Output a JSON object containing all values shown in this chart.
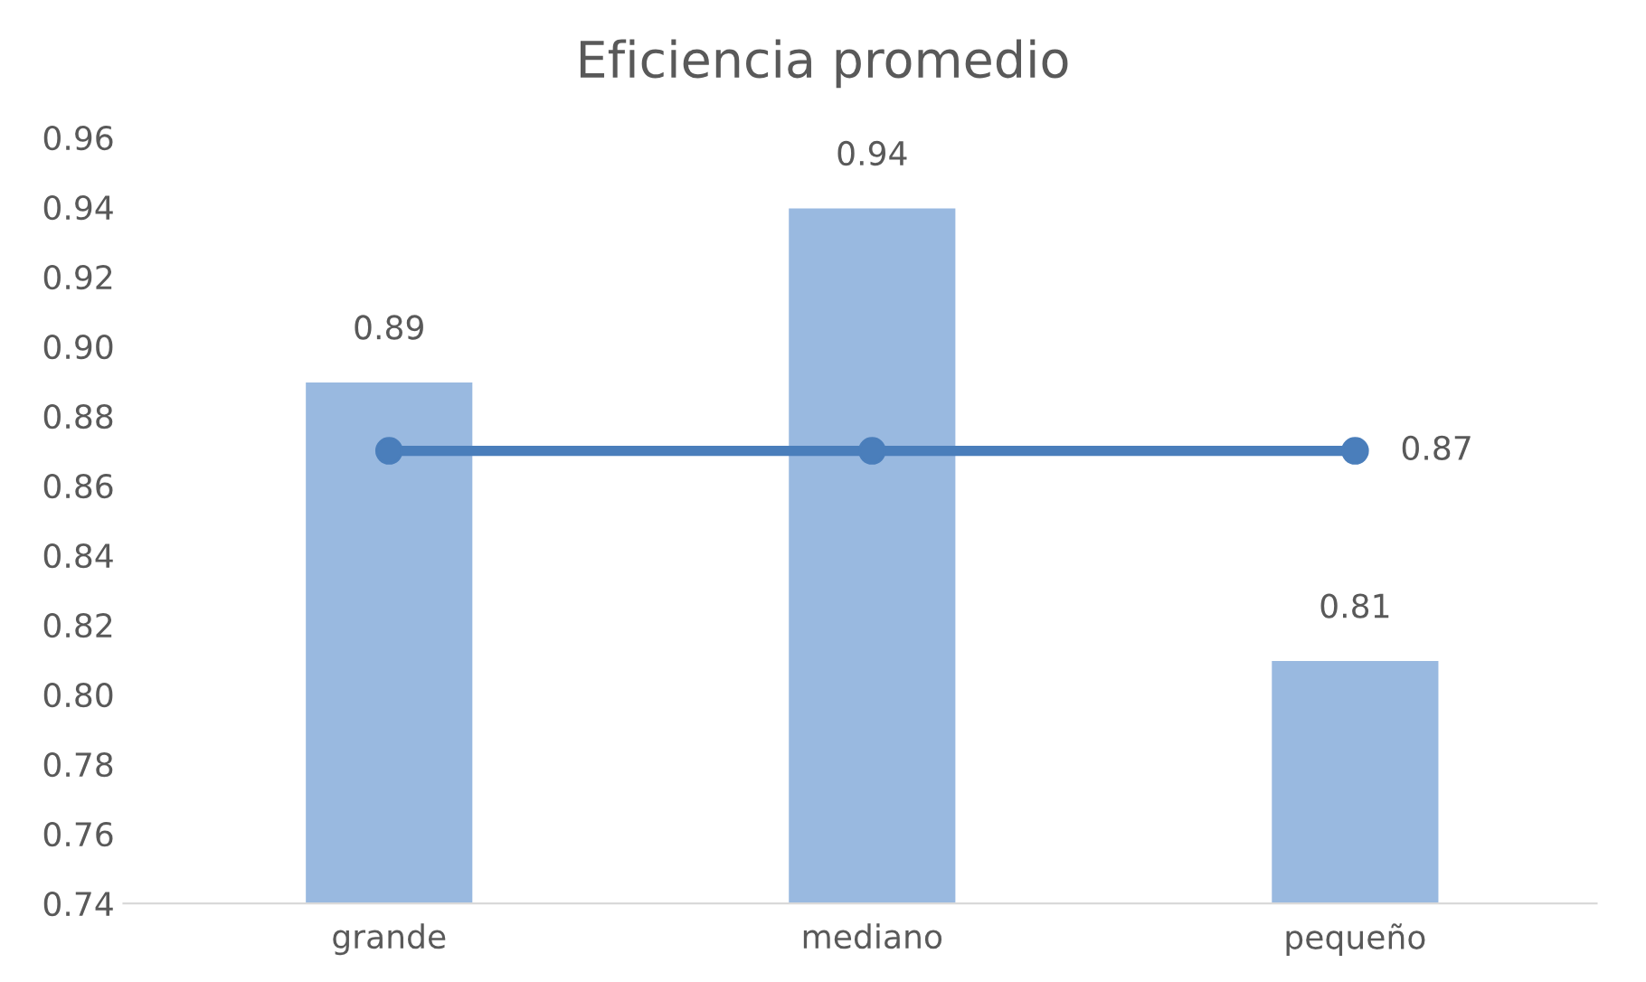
{
  "chart_data": {
    "type": "bar",
    "title": "Eficiencia promedio",
    "categories": [
      "grande",
      "mediano",
      "pequeño"
    ],
    "series": [
      {
        "color": "#99b9e0",
        "values": [
          0.89,
          0.94,
          0.81
        ],
        "value_labels": [
          "0.89",
          "0.94",
          "0.81"
        ]
      },
      {
        "type": "line",
        "color": "#4a7ebb",
        "values": [
          0.87,
          0.87,
          0.87
        ],
        "value_labels": [
          null,
          null,
          "0.87"
        ],
        "marker": "circle",
        "line_style": "solid"
      }
    ],
    "ylim": [
      0.74,
      0.96
    ],
    "yticks": [
      0.74,
      0.76,
      0.78,
      {
        "value": 0.8,
        "label": "0.80"
      },
      0.82,
      0.84,
      0.86,
      0.88,
      {
        "value": 0.9,
        "label": "0.90"
      },
      0.92,
      0.94,
      0.96
    ],
    "grid": false,
    "legend": false
  }
}
